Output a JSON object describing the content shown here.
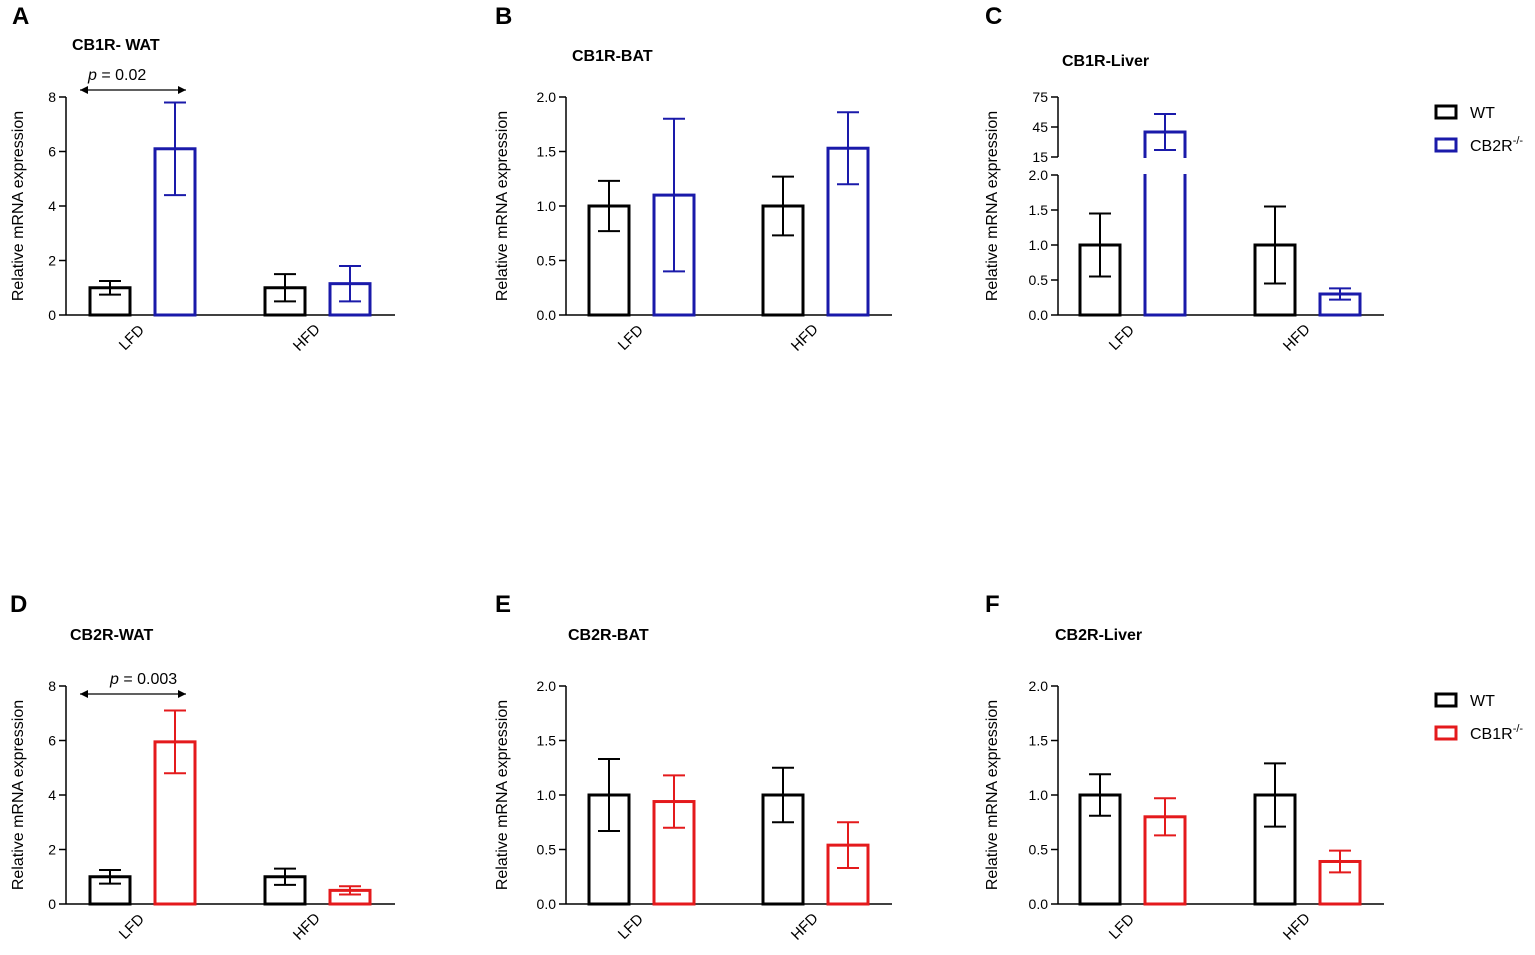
{
  "y_axis_label": "Relative mRNA expression",
  "legends": [
    {
      "items": [
        {
          "label": "WT",
          "color": "#000000"
        },
        {
          "label": "CB2R",
          "superscript": "-/-",
          "color": "#1a1aaa"
        }
      ]
    },
    {
      "items": [
        {
          "label": "WT",
          "color": "#000000"
        },
        {
          "label": "CB1R",
          "superscript": "-/-",
          "color": "#e41a1c"
        }
      ]
    }
  ],
  "chart_data": [
    {
      "panel": "A",
      "title": "CB1R- WAT",
      "type": "bar",
      "categories": [
        "LFD",
        "HFD"
      ],
      "series": [
        {
          "name": "WT",
          "color": "#000000",
          "values": [
            1.0,
            1.0
          ],
          "errors": [
            0.25,
            0.5
          ]
        },
        {
          "name": "CB2R-/-",
          "color": "#1a1aaa",
          "values": [
            6.1,
            1.15
          ],
          "errors": [
            1.7,
            0.65
          ]
        }
      ],
      "ylim": [
        0,
        8
      ],
      "yticks": [
        "0",
        "2",
        "4",
        "6",
        "8"
      ],
      "annotation": {
        "italic": "p",
        "text": " = 0.02"
      }
    },
    {
      "panel": "B",
      "title": "CB1R-BAT",
      "type": "bar",
      "categories": [
        "LFD",
        "HFD"
      ],
      "series": [
        {
          "name": "WT",
          "color": "#000000",
          "values": [
            1.0,
            1.0
          ],
          "errors": [
            0.23,
            0.27
          ]
        },
        {
          "name": "CB2R-/-",
          "color": "#1a1aaa",
          "values": [
            1.1,
            1.53
          ],
          "errors": [
            0.7,
            0.33
          ]
        }
      ],
      "ylim": [
        0,
        2
      ],
      "yticks": [
        "0.0",
        "0.5",
        "1.0",
        "1.5",
        "2.0"
      ]
    },
    {
      "panel": "C",
      "title": "CB1R-Liver",
      "type": "bar",
      "categories": [
        "LFD",
        "HFD"
      ],
      "series": [
        {
          "name": "WT",
          "color": "#000000",
          "values": [
            1.0,
            1.0
          ],
          "errors": [
            0.45,
            0.55
          ]
        },
        {
          "name": "CB2R-/-",
          "color": "#1a1aaa",
          "values": [
            40,
            0.3
          ],
          "errors": [
            18,
            0.08
          ]
        }
      ],
      "ylim": [
        0,
        75
      ],
      "axis_break": [
        2,
        15
      ],
      "yticks": [
        "0.0",
        "0.5",
        "1.0",
        "1.5",
        "2.0"
      ],
      "yticks_upper": [
        "15",
        "45",
        "75"
      ]
    },
    {
      "panel": "D",
      "title": "CB2R-WAT",
      "type": "bar",
      "categories": [
        "LFD",
        "HFD"
      ],
      "series": [
        {
          "name": "WT",
          "color": "#000000",
          "values": [
            1.0,
            1.0
          ],
          "errors": [
            0.25,
            0.3
          ]
        },
        {
          "name": "CB1R-/-",
          "color": "#e41a1c",
          "values": [
            5.95,
            0.5
          ],
          "errors": [
            1.15,
            0.15
          ]
        }
      ],
      "ylim": [
        0,
        8
      ],
      "yticks": [
        "0",
        "2",
        "4",
        "6",
        "8"
      ],
      "annotation": {
        "italic": "p",
        "text": " = 0.003"
      }
    },
    {
      "panel": "E",
      "title": "CB2R-BAT",
      "type": "bar",
      "categories": [
        "LFD",
        "HFD"
      ],
      "series": [
        {
          "name": "WT",
          "color": "#000000",
          "values": [
            1.0,
            1.0
          ],
          "errors": [
            0.33,
            0.25
          ]
        },
        {
          "name": "CB1R-/-",
          "color": "#e41a1c",
          "values": [
            0.94,
            0.54
          ],
          "errors": [
            0.24,
            0.21
          ]
        }
      ],
      "ylim": [
        0,
        2
      ],
      "yticks": [
        "0.0",
        "0.5",
        "1.0",
        "1.5",
        "2.0"
      ]
    },
    {
      "panel": "F",
      "title": "CB2R-Liver",
      "type": "bar",
      "categories": [
        "LFD",
        "HFD"
      ],
      "series": [
        {
          "name": "WT",
          "color": "#000000",
          "values": [
            1.0,
            1.0
          ],
          "errors": [
            0.19,
            0.29
          ]
        },
        {
          "name": "CB1R-/-",
          "color": "#e41a1c",
          "values": [
            0.8,
            0.39
          ],
          "errors": [
            0.17,
            0.1
          ]
        }
      ],
      "ylim": [
        0,
        2
      ],
      "yticks": [
        "0.0",
        "0.5",
        "1.0",
        "1.5",
        "2.0"
      ]
    }
  ]
}
